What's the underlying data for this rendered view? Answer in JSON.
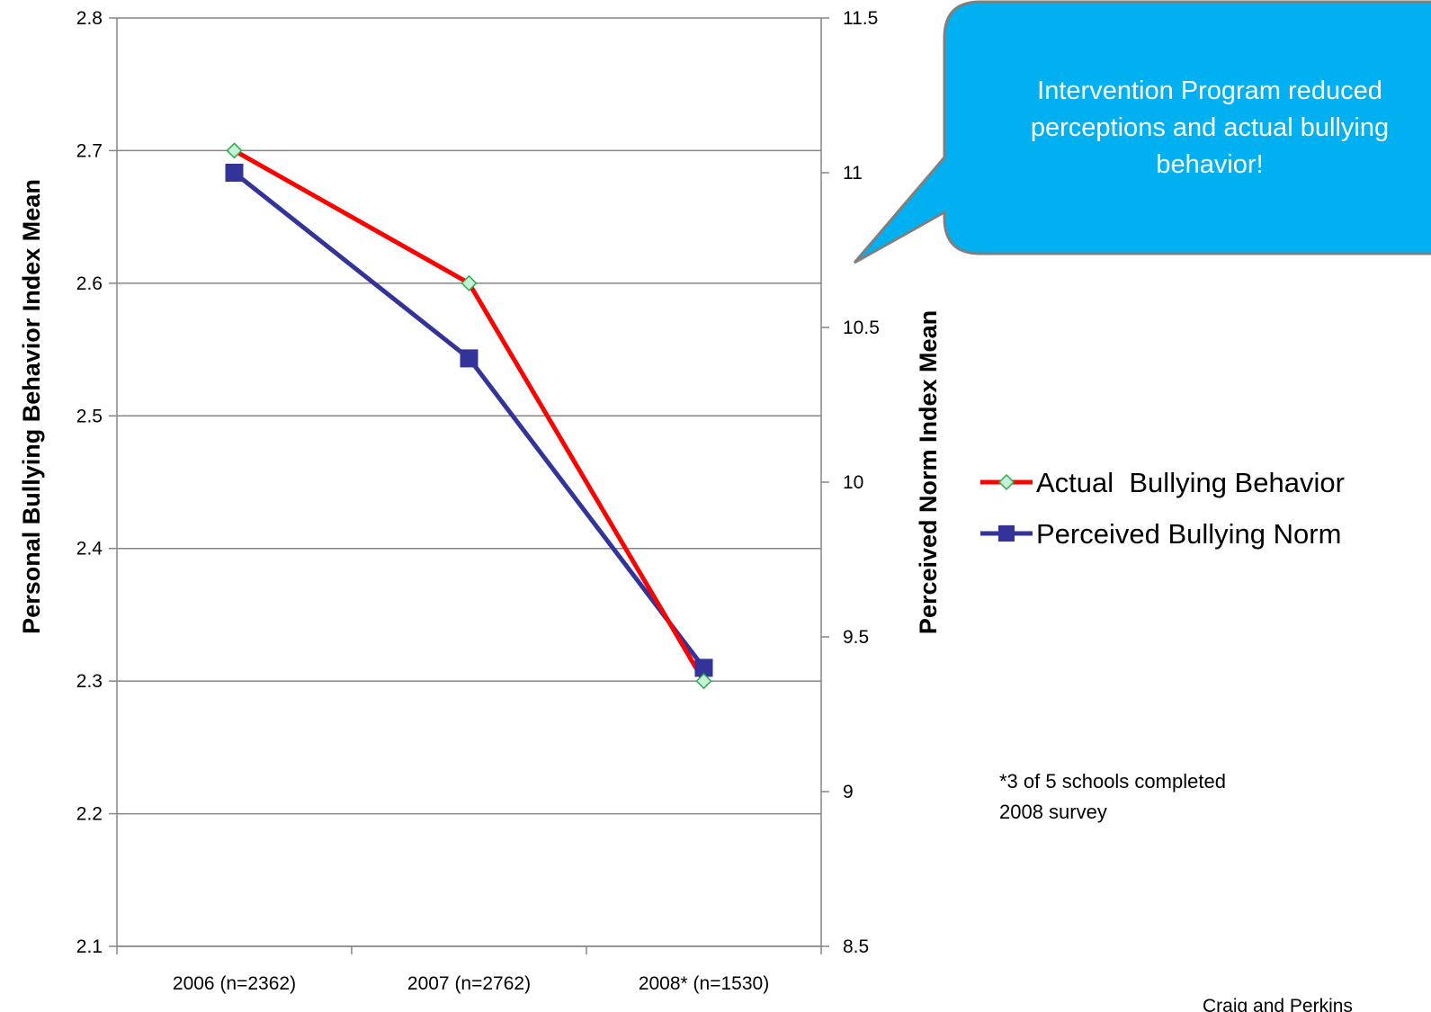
{
  "chart_data": {
    "type": "line",
    "categories": [
      "2006 (n=2362)",
      "2007 (n=2762)",
      "2008* (n=1530)"
    ],
    "series": [
      {
        "name": "Actual  Bullying Behavior",
        "axis": "left",
        "values": [
          2.7,
          2.6,
          2.3
        ],
        "color": "#ff0000",
        "marker": "diamond",
        "marker_color": "#c3f2d6"
      },
      {
        "name": "Perceived Bullying Norm",
        "axis": "right",
        "values": [
          11.0,
          10.4,
          9.4
        ],
        "color": "#333399",
        "marker": "square",
        "marker_color": "#333399"
      }
    ],
    "y_left": {
      "label": "Personal Bullying Behavior Index Mean",
      "ylim": [
        2.1,
        2.8
      ],
      "ticks": [
        "2.1",
        "2.2",
        "2.3",
        "2.4",
        "2.5",
        "2.6",
        "2.7",
        "2.8"
      ]
    },
    "y_right": {
      "label": "Perceived Norm Index Mean",
      "ylim": [
        8.5,
        11.5
      ],
      "ticks": [
        "8.5",
        "9",
        "9.5",
        "10",
        "10.5",
        "11",
        "11.5"
      ]
    },
    "grid": true,
    "legend_placement": "right"
  },
  "callout": {
    "lines": [
      "Intervention Program reduced",
      "perceptions and actual bullying",
      "behavior!"
    ],
    "color": "#00b0f0"
  },
  "note": {
    "lines": [
      "*3 of 5 schools completed",
      "2008 survey"
    ]
  },
  "credit": "Craig and Perkins"
}
